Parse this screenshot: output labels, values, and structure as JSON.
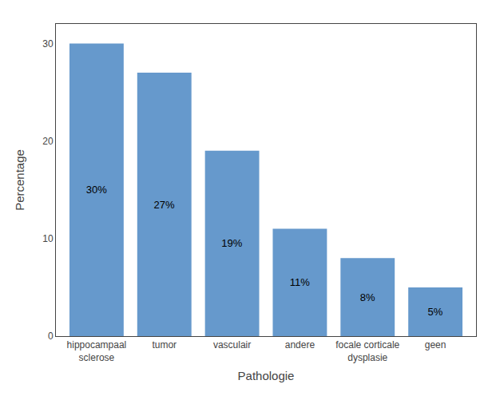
{
  "chart_data": {
    "type": "bar",
    "xlabel": "Pathologie",
    "ylabel": "Percentage",
    "categories": [
      "hippocampaal\nsclerose",
      "tumor",
      "vasculair",
      "andere",
      "focale corticale\ndysplasie",
      "geen"
    ],
    "values": [
      30,
      27,
      19,
      11,
      8,
      5
    ],
    "value_labels": [
      "30%",
      "27%",
      "19%",
      "11%",
      "8%",
      "5%"
    ],
    "data_labels": true,
    "color": "#6699cc",
    "ylim": [
      0,
      32
    ],
    "yticks": [
      0,
      10,
      20,
      30
    ],
    "grid": false
  }
}
